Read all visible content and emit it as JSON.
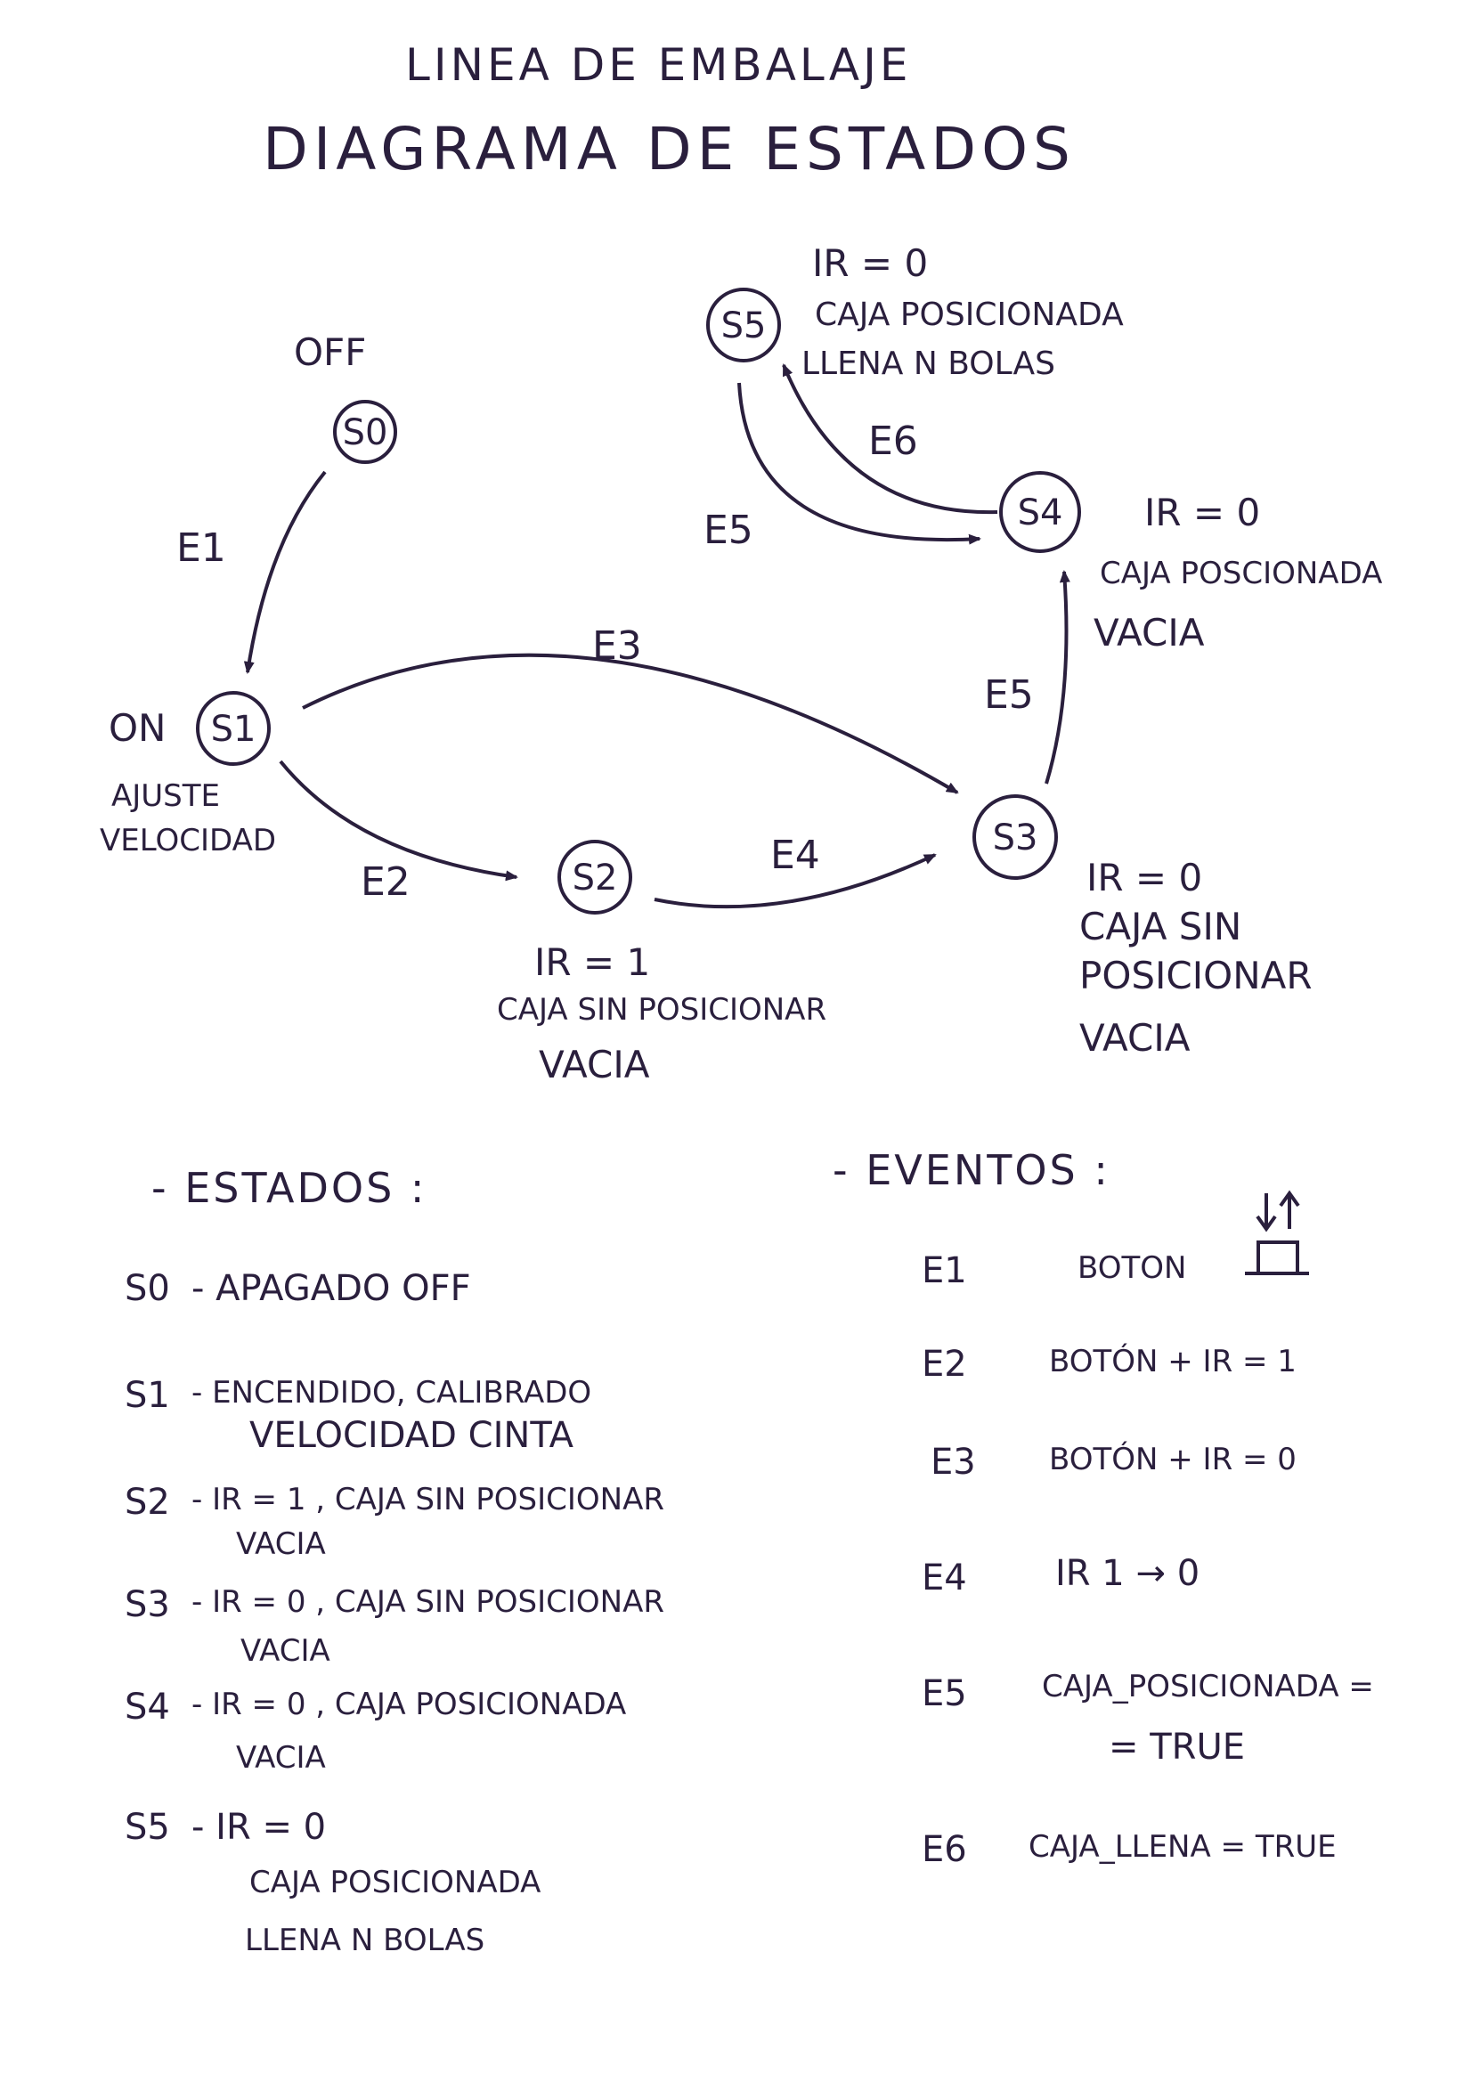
{
  "title": {
    "line1": "LINEA DE EMBALAJE",
    "line2": "DIAGRAMA DE ESTADOS"
  },
  "states": [
    {
      "id": "S0",
      "label": "S0",
      "notes": [
        "OFF"
      ]
    },
    {
      "id": "S1",
      "label": "S1",
      "side_note": "ON",
      "notes": [
        "AJUSTE",
        "VELOCIDAD"
      ]
    },
    {
      "id": "S2",
      "label": "S2",
      "notes": [
        "IR = 1",
        "CAJA SIN POSICIONAR",
        "VACIA"
      ]
    },
    {
      "id": "S3",
      "label": "S3",
      "notes": [
        "IR = 0",
        "CAJA SIN",
        "POSICIONAR",
        "VACIA"
      ]
    },
    {
      "id": "S4",
      "label": "S4",
      "notes": [
        "IR = 0",
        "CAJA POSCIONADA",
        "VACIA"
      ]
    },
    {
      "id": "S5",
      "label": "S5",
      "notes": [
        "IR = 0",
        "CAJA POSICIONADA",
        "LLENA N BOLAS"
      ]
    }
  ],
  "transitions": [
    {
      "from": "S0",
      "to": "S1",
      "label": "E1"
    },
    {
      "from": "S1",
      "to": "S2",
      "label": "E2"
    },
    {
      "from": "S1",
      "to": "S3",
      "label": "E3"
    },
    {
      "from": "S2",
      "to": "S3",
      "label": "E4"
    },
    {
      "from": "S3",
      "to": "S4",
      "label": "E5"
    },
    {
      "from": "S5",
      "to": "S4",
      "label": "E5"
    },
    {
      "from": "S4",
      "to": "S5",
      "label": "E6"
    }
  ],
  "legend": {
    "states_heading": "- ESTADOS :",
    "events_heading": "- EVENTOS :",
    "states": [
      {
        "code": "S0",
        "lines": [
          "- APAGADO OFF"
        ]
      },
      {
        "code": "S1",
        "lines": [
          "- ENCENDIDO, CALIBRADO",
          "VELOCIDAD CINTA"
        ]
      },
      {
        "code": "S2",
        "lines": [
          "- IR = 1 , CAJA SIN POSICIONAR",
          "VACIA"
        ]
      },
      {
        "code": "S3",
        "lines": [
          "- IR = 0 , CAJA SIN POSICIONAR",
          "VACIA"
        ]
      },
      {
        "code": "S4",
        "lines": [
          "- IR = 0 , CAJA POSICIONADA",
          "VACIA"
        ]
      },
      {
        "code": "S5",
        "lines": [
          "- IR = 0",
          "CAJA POSICIONADA",
          "LLENA N BOLAS"
        ]
      }
    ],
    "events": [
      {
        "code": "E1",
        "lines": [
          "BOTON"
        ]
      },
      {
        "code": "E2",
        "lines": [
          "BOTÓN + IR = 1"
        ]
      },
      {
        "code": "E3",
        "lines": [
          "BOTÓN + IR = 0"
        ]
      },
      {
        "code": "E4",
        "lines": [
          "IR 1 → 0"
        ]
      },
      {
        "code": "E5",
        "lines": [
          "CAJA_POSICIONADA =",
          "= TRUE"
        ]
      },
      {
        "code": "E6",
        "lines": [
          "CAJA_LLENA = TRUE"
        ]
      }
    ]
  },
  "colors": {
    "ink": "#2a1f3d",
    "paper": "#ffffff"
  }
}
